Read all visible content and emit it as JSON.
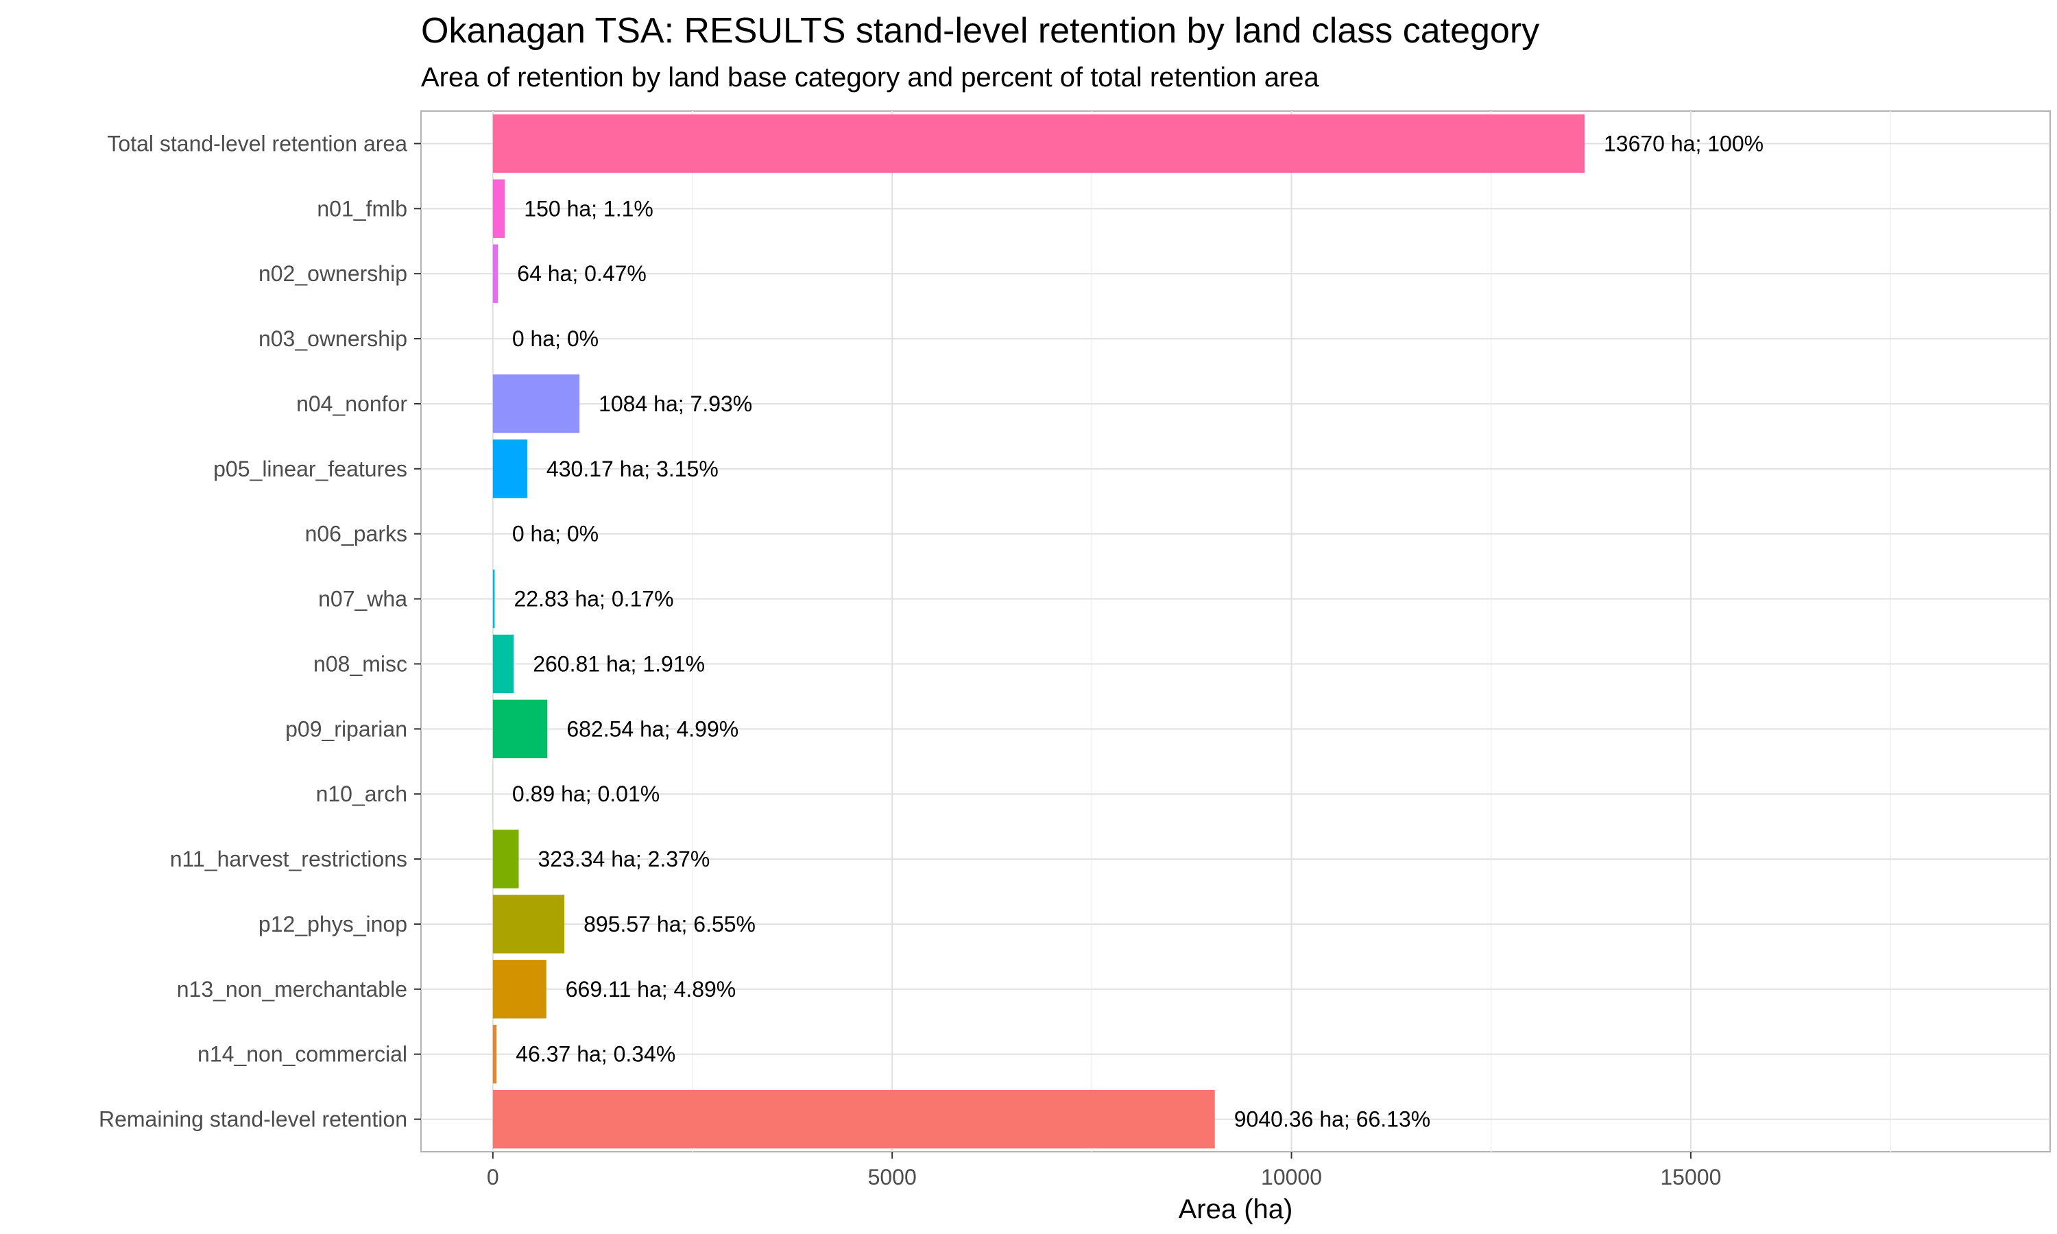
{
  "chart_data": {
    "type": "bar",
    "orientation": "horizontal",
    "title": "Okanagan TSA: RESULTS stand-level retention by land class category",
    "subtitle": "Area of retention by land base category and percent of total retention area",
    "xlabel": "Area (ha)",
    "ylabel": "",
    "xlim": [
      -900,
      19500
    ],
    "xticks": [
      0,
      5000,
      10000,
      15000
    ],
    "grid": true,
    "legend": "none",
    "categories": [
      "Total stand-level retention area",
      "n01_fmlb",
      "n02_ownership",
      "n03_ownership",
      "n04_nonfor",
      "p05_linear_features",
      "n06_parks",
      "n07_wha",
      "n08_misc",
      "p09_riparian",
      "n10_arch",
      "n11_harvest_restrictions",
      "p12_phys_inop",
      "n13_non_merchantable",
      "n14_non_commercial",
      "Remaining stand-level retention"
    ],
    "values": [
      13670,
      150,
      64,
      0,
      1084,
      430.17,
      0,
      22.83,
      260.81,
      682.54,
      0.89,
      323.34,
      895.57,
      669.11,
      46.37,
      9040.36
    ],
    "labels": [
      "13670 ha; 100%",
      "150 ha; 1.1%",
      "64 ha; 0.47%",
      "0 ha; 0%",
      "1084 ha; 7.93%",
      "430.17 ha; 3.15%",
      "0 ha; 0%",
      "22.83 ha; 0.17%",
      "260.81 ha; 1.91%",
      "682.54 ha; 4.99%",
      "0.89 ha; 0.01%",
      "323.34 ha; 2.37%",
      "895.57 ha; 6.55%",
      "669.11 ha; 4.89%",
      "46.37 ha; 0.34%",
      "9040.36 ha; 66.13%"
    ],
    "colors": [
      "#FF689F",
      "#FC61D5",
      "#E76BF3",
      "#C77CFF",
      "#8F91FF",
      "#00A9FF",
      "#00B0F6",
      "#00BCD8",
      "#00C1A3",
      "#00BE67",
      "#35A200",
      "#7CAE00",
      "#ABA300",
      "#D39200",
      "#E88526",
      "#F8766D"
    ]
  }
}
